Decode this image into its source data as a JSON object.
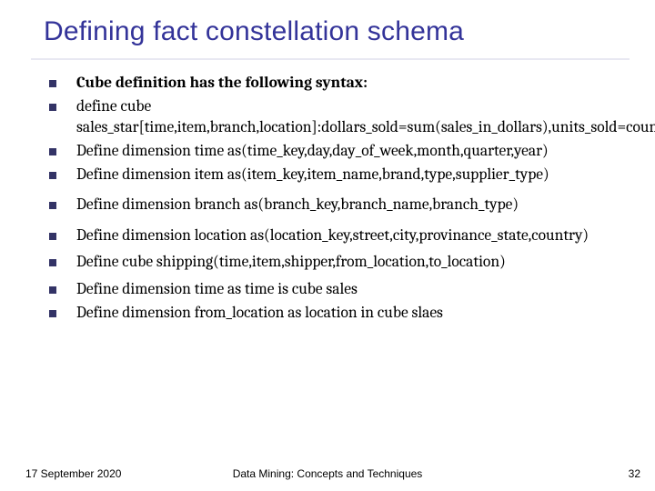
{
  "title": "Defining fact constellation  schema",
  "title_color": "#333399",
  "title_fontsize": 30,
  "divider_color": "#9494c8",
  "bullet_color": "#333366",
  "bullet_size": 8,
  "body_fontsize": 17.5,
  "body_font": "Cambria",
  "background_color": "#ffffff",
  "bullets": [
    {
      "text": "Cube definition has the following syntax:",
      "bold": true,
      "spacer_after": 0
    },
    {
      "text": "define cube sales_star[time,item,branch,location]:dollars_sold=sum(sales_in_dollars),units_sold=count(*)",
      "bold": false,
      "spacer_after": 0
    },
    {
      "text": "Define dimension time as(time_key,day,day_of_week,month,quarter,year)",
      "bold": false,
      "spacer_after": 0
    },
    {
      "text": "Define dimension item as(item_key,item_name,brand,type,supplier_type)",
      "bold": false,
      "spacer_after": 8
    },
    {
      "text": "Define dimension branch as(branch_key,branch_name,branch_type)",
      "bold": false,
      "spacer_after": 8
    },
    {
      "text": "Define dimension location as(location_key,street,city,provinance_state,country)",
      "bold": false,
      "spacer_after": 4
    },
    {
      "text": "Define cube shipping(time,item,shipper,from_location,to_location)",
      "bold": false,
      "spacer_after": 4
    },
    {
      "text": "Define dimension time as time is cube sales",
      "bold": false,
      "spacer_after": 0
    },
    {
      "text": "Define dimension from_location as location in cube slaes",
      "bold": false,
      "spacer_after": 0
    }
  ],
  "footer": {
    "date": "17 September 2020",
    "center": "Data Mining: Concepts and Techniques",
    "page": "32",
    "fontsize": 12
  }
}
